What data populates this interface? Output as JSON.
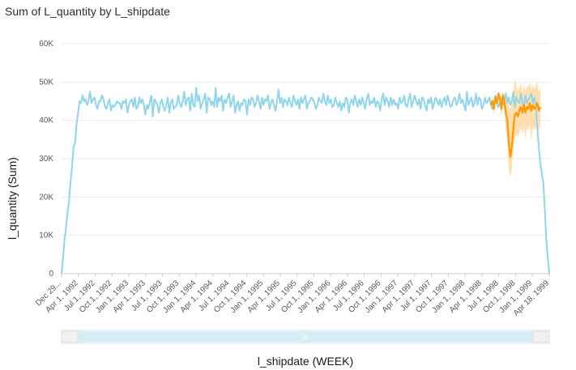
{
  "title": "Sum of L_quantity by L_shipdate",
  "chart_data": {
    "type": "line",
    "title": "Sum of L_quantity by L_shipdate",
    "xlabel": "l_shipdate (WEEK)",
    "ylabel": "l_quantity (Sum)",
    "ylim": [
      0,
      60000
    ],
    "ytick_labels": [
      "0",
      "10K",
      "20K",
      "30K",
      "40K",
      "50K",
      "60K"
    ],
    "yticks": [
      0,
      10000,
      20000,
      30000,
      40000,
      50000,
      60000
    ],
    "xtick_labels": [
      "Dec 29...",
      "Apr 1, 1992",
      "Jul 1, 1992",
      "Oct 1, 1992",
      "Jan 1, 1993",
      "Apr 1, 1993",
      "Jul 1, 1993",
      "Oct 1, 1993",
      "Jan 1, 1994",
      "Apr 1, 1994",
      "Jul 1, 1994",
      "Oct 1, 1994",
      "Jan 1, 1995",
      "Apr 1, 1995",
      "Jul 1, 1995",
      "Oct 1, 1995",
      "Jan 1, 1996",
      "Apr 1, 1996",
      "Jul 1, 1996",
      "Oct 1, 1996",
      "Jan 1, 1997",
      "Apr 1, 1997",
      "Jul 1, 1997",
      "Oct 1, 1997",
      "Jan 1, 1998",
      "Apr 1, 1998",
      "Jul 1, 1998",
      "Oct 1, 1998",
      "Jan 1, 1999",
      "Apr 18, 1999"
    ],
    "grid": true,
    "series": [
      {
        "color": "#8fd6ea",
        "values": [
          0,
          4000,
          9000,
          12000,
          16000,
          19000,
          24000,
          28000,
          33000,
          34000,
          39000,
          42000,
          45000,
          44500,
          46500,
          45000,
          45500,
          44000,
          45000,
          47500,
          44500,
          45500,
          46000,
          44000,
          43000,
          45000,
          45000,
          46500,
          45500,
          43500,
          43000,
          44500,
          45500,
          42500,
          44000,
          43500,
          44000,
          45000,
          44500,
          44500,
          43000,
          45000,
          44500,
          45500,
          42000,
          44000,
          45000,
          45500,
          43500,
          46000,
          43000,
          43500,
          46000,
          44500,
          45500,
          44000,
          41500,
          44000,
          43000,
          45000,
          46500,
          41000,
          45500,
          45000,
          44000,
          42000,
          44500,
          45500,
          43500,
          42500,
          44000,
          46000,
          42000,
          44500,
          45500,
          43000,
          43500,
          44000,
          46500,
          44500,
          43500,
          45000,
          47500,
          44000,
          45500,
          46000,
          42500,
          47000,
          44000,
          43500,
          48500,
          45000,
          46500,
          43000,
          44500,
          45500,
          47000,
          42000,
          46000,
          45500,
          44000,
          45000,
          43500,
          48500,
          43500,
          46000,
          45000,
          46500,
          42500,
          45500,
          44500,
          46000,
          47000,
          43500,
          45000,
          46500,
          42000,
          44000,
          45000,
          42500,
          44500,
          44000,
          45500,
          45000,
          41500,
          45500,
          44000,
          46000,
          45500,
          43500,
          44500,
          46500,
          45000,
          43000,
          46000,
          44000,
          45500,
          45000,
          46500,
          43000,
          44500,
          45500,
          44000,
          42500,
          45000,
          48000,
          44500,
          46000,
          43500,
          45500,
          45000,
          44000,
          46000,
          44500,
          43500,
          46500,
          45000,
          44000,
          45500,
          43000,
          46000,
          44500,
          45500,
          46500,
          43000,
          44500,
          45000,
          46000,
          45500,
          44500,
          43000,
          44000,
          46000,
          45000,
          44500,
          47000,
          45000,
          44000,
          46500,
          44500,
          45500,
          43500,
          44000,
          46000,
          44500,
          43500,
          45000,
          42500,
          44500,
          43500,
          46000,
          45500,
          42000,
          44500,
          45500,
          44000,
          46500,
          45000,
          43500,
          45500,
          44000,
          46000,
          44500,
          43000,
          45500,
          47000,
          44000,
          45000,
          44500,
          46000,
          43500,
          45000,
          44500,
          42500,
          45500,
          47000,
          44000,
          46000,
          45000,
          43500,
          46000,
          44000,
          45500,
          44000,
          44500,
          43000,
          46000,
          44500,
          45000,
          46500,
          44000,
          43500,
          45500,
          47000,
          43500,
          45000,
          46500,
          45000,
          44000,
          45500,
          43000,
          46000,
          45500,
          44000,
          42500,
          45500,
          44500,
          46000,
          43000,
          44500,
          46000,
          45000,
          44000,
          45500,
          43500,
          45000,
          46000,
          44000,
          46500,
          45000,
          43500,
          44000,
          45500,
          46000,
          44000,
          45000,
          47000,
          44500,
          45500,
          44000,
          42500,
          47500,
          44000,
          45000,
          46000,
          43500,
          44500,
          47000,
          44000,
          46000,
          45500,
          43000,
          44000,
          46000,
          44500,
          45000,
          46000,
          44000,
          43000,
          44500,
          46500,
          45000,
          43500,
          44500,
          46000,
          44000,
          45000,
          47000,
          44500,
          46000,
          44000,
          45000,
          47500,
          43500,
          46000,
          45000,
          44500,
          47000,
          45000,
          43000,
          46500,
          44500,
          45500,
          46000,
          47000,
          44500,
          46000,
          44000,
          38000,
          33000,
          29000,
          26000,
          24000,
          17000,
          9000,
          4000,
          0
        ]
      },
      {
        "color": "#ff9900",
        "values": [
          44000,
          45000,
          43000,
          46000,
          44500,
          47000,
          45500,
          43000,
          46500,
          45000,
          42000,
          40000,
          34000,
          30500,
          33000,
          38000,
          41500,
          42000,
          41000,
          42500,
          43500,
          42000,
          44000,
          42000,
          43500,
          43000,
          44500,
          42500,
          44000,
          43000,
          43500,
          44500,
          42500,
          43500
        ]
      }
    ],
    "forecast_interval": {
      "upper": [
        45000,
        46500,
        44500,
        47000,
        46000,
        47500,
        47000,
        45500,
        47500,
        47000,
        46500,
        46000,
        44000,
        43000,
        44500,
        47000,
        51000,
        49000,
        47500,
        48500,
        50000,
        47000,
        49500,
        47000,
        49000,
        48500,
        50000,
        48000,
        49500,
        48000,
        49000,
        50000,
        47500,
        48500
      ],
      "lower": [
        43000,
        43500,
        41500,
        44500,
        43000,
        45500,
        44000,
        41000,
        44500,
        42500,
        37500,
        34000,
        27000,
        25000,
        27500,
        33000,
        35000,
        36500,
        35500,
        37000,
        38000,
        36500,
        38500,
        35000,
        38000,
        37500,
        39000,
        34500,
        38500,
        37500,
        38000,
        39500,
        37000,
        38500
      ]
    },
    "zoom": {
      "start": 0.03,
      "end": 0.97
    }
  },
  "scroll_handle_glyph": "≡"
}
